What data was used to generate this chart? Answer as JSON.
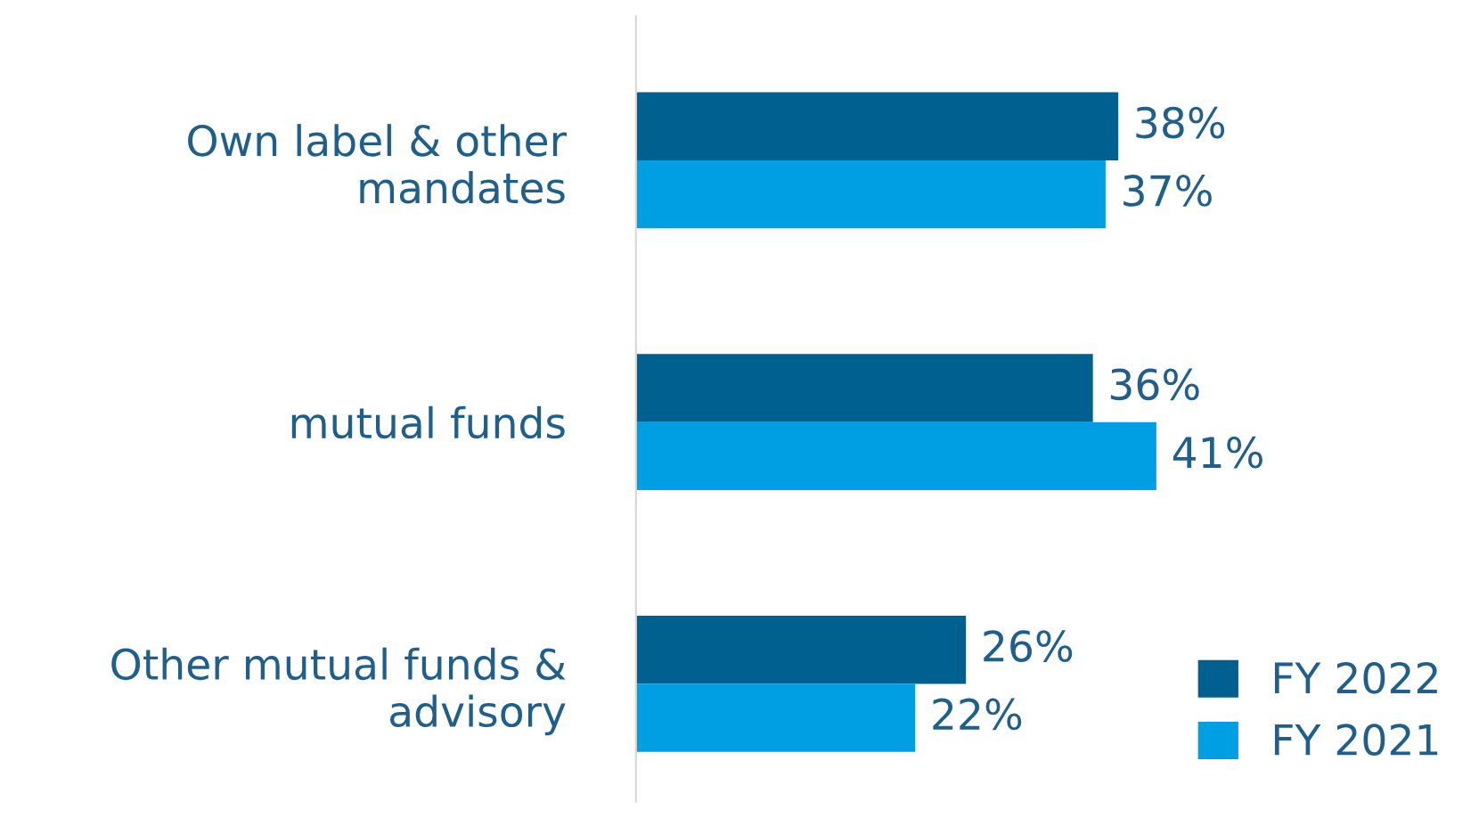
{
  "chart_data": {
    "type": "bar",
    "orientation": "horizontal",
    "categories": [
      "Own label & other mandates",
      "mutual funds",
      "Other mutual funds & advisory"
    ],
    "series": [
      {
        "name": "FY 2022",
        "color": "#00608f",
        "values": [
          38,
          36,
          26
        ],
        "value_labels": [
          "38%",
          "36%",
          "26%"
        ]
      },
      {
        "name": "FY 2021",
        "color": "#009fe3",
        "values": [
          37,
          41,
          22
        ],
        "value_labels": [
          "37%",
          "41%",
          "22%"
        ]
      }
    ],
    "legend": "bottom right",
    "grid": false
  }
}
